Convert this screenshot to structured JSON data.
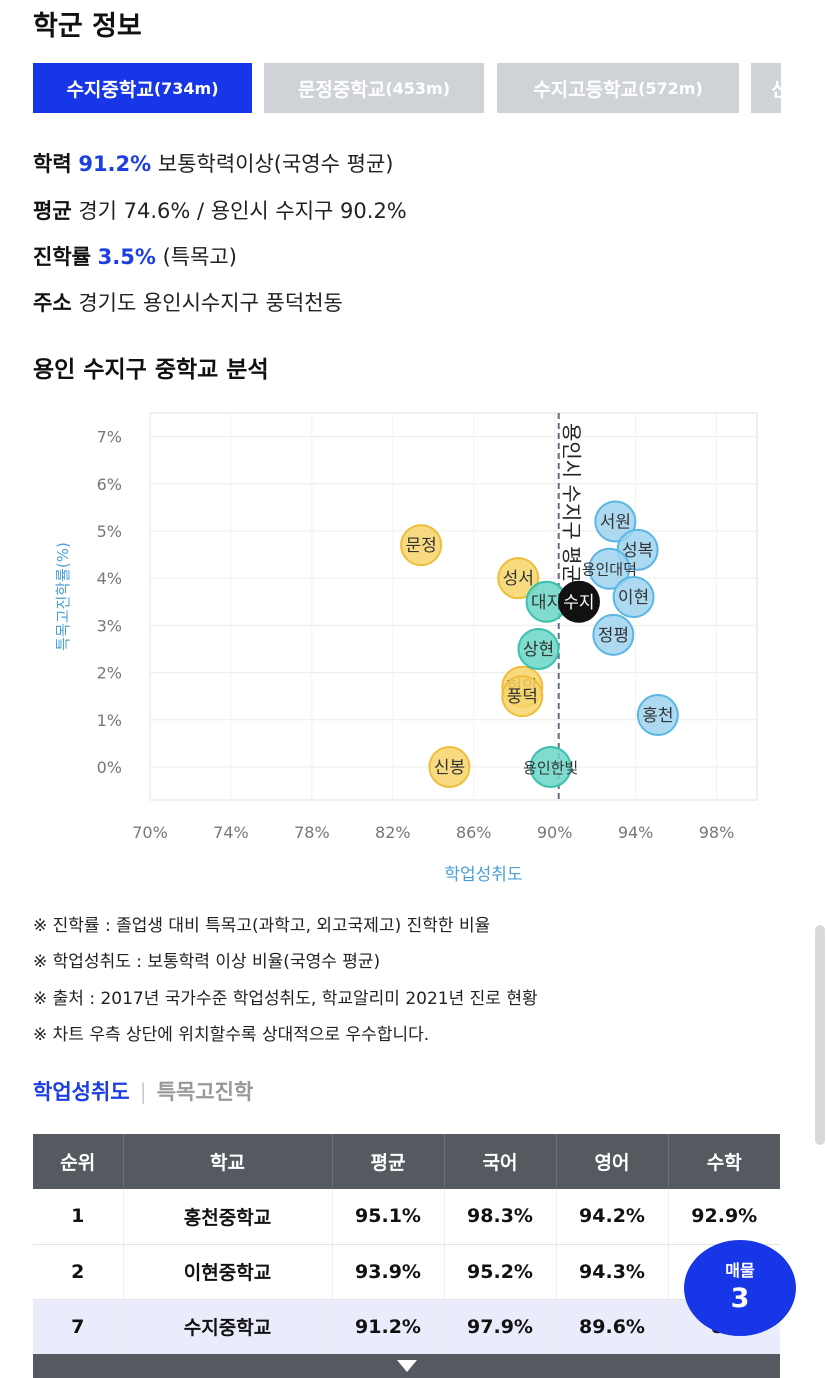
{
  "section_title": "학군 정보",
  "tabs": [
    {
      "name": "수지중학교",
      "dist": "(734m)",
      "active": true
    },
    {
      "name": "문정중학교",
      "dist": "(453m)",
      "active": false
    },
    {
      "name": "수지고등학교",
      "dist": "(572m)",
      "active": false
    },
    {
      "name": "신",
      "dist": "",
      "active": false
    }
  ],
  "info": {
    "academic_label": "학력",
    "academic_value": "91.2%",
    "academic_desc": "보통학력이상(국영수 평균)",
    "average_label": "평균",
    "average_desc": "경기 74.6% / 용인시 수지구 90.2%",
    "advance_label": "진학률",
    "advance_value": "3.5%",
    "advance_desc": "(특목고)",
    "address_label": "주소",
    "address_desc": "경기도 용인시수지구 풍덕천동"
  },
  "analysis_title": "용인 수지구 중학교 분석",
  "chart_data": {
    "type": "scatter",
    "xlabel": "학업성취도",
    "ylabel": "특목고진학률(%)",
    "xlim": [
      70,
      100
    ],
    "ylim": [
      -0.7,
      7.5
    ],
    "x_ticks": [
      "70%",
      "74%",
      "78%",
      "82%",
      "86%",
      "90%",
      "94%",
      "98%"
    ],
    "x_tick_values": [
      70,
      74,
      78,
      82,
      86,
      90,
      94,
      98
    ],
    "y_ticks": [
      "0%",
      "1%",
      "2%",
      "3%",
      "4%",
      "5%",
      "6%",
      "7%"
    ],
    "y_tick_values": [
      0,
      1,
      2,
      3,
      4,
      5,
      6,
      7
    ],
    "reference_line": {
      "x": 90.2,
      "label": "용인시 수지구 평균"
    },
    "colors": {
      "yellow": "#f7d56a",
      "yellow_stroke": "#f0bd3a",
      "teal": "#6ad6c6",
      "teal_stroke": "#3cc0ae",
      "blue": "#9fd4ef",
      "blue_stroke": "#5bb6e4",
      "current": "#111111",
      "axis_text": "#777777",
      "ylabel_color": "#4aa0d8"
    },
    "points": [
      {
        "label": "문정",
        "x": 83.4,
        "y": 4.7,
        "color": "yellow"
      },
      {
        "label": "성서",
        "x": 88.2,
        "y": 4.0,
        "color": "yellow"
      },
      {
        "label": "현암",
        "x": 88.4,
        "y": 1.7,
        "color": "yellow"
      },
      {
        "label": "풍덕",
        "x": 88.4,
        "y": 1.5,
        "color": "yellow"
      },
      {
        "label": "신봉",
        "x": 84.8,
        "y": 0.0,
        "color": "yellow"
      },
      {
        "label": "대지",
        "x": 89.6,
        "y": 3.5,
        "color": "teal"
      },
      {
        "label": "상현",
        "x": 89.2,
        "y": 2.5,
        "color": "teal"
      },
      {
        "label": "용인한빛",
        "x": 89.8,
        "y": 0.0,
        "color": "teal"
      },
      {
        "label": "서원",
        "x": 93.0,
        "y": 5.2,
        "color": "blue"
      },
      {
        "label": "성복",
        "x": 94.1,
        "y": 4.6,
        "color": "blue"
      },
      {
        "label": "용인대덕",
        "x": 92.7,
        "y": 4.2,
        "color": "blue"
      },
      {
        "label": "이현",
        "x": 93.9,
        "y": 3.6,
        "color": "blue"
      },
      {
        "label": "정평",
        "x": 92.9,
        "y": 2.8,
        "color": "blue"
      },
      {
        "label": "홍천",
        "x": 95.1,
        "y": 1.1,
        "color": "blue"
      },
      {
        "label": "수지",
        "x": 91.2,
        "y": 3.5,
        "color": "current"
      }
    ]
  },
  "notes": [
    "※ 진학률 : 졸업생 대비 특목고(과학고, 외고국제고) 진학한 비율",
    "※ 학업성취도 : 보통학력 이상 비율(국영수 평균)",
    "※ 출처 : 2017년 국가수준 학업성취도, 학교알리미 2021년 진로 현황",
    "※ 차트 우측 상단에 위치할수록 상대적으로 우수합니다."
  ],
  "subtabs": {
    "active": "학업성취도",
    "inactive": "특목고진학"
  },
  "table": {
    "headers": [
      "순위",
      "학교",
      "평균",
      "국어",
      "영어",
      "수학"
    ],
    "rows": [
      [
        "1",
        "홍천중학교",
        "95.1%",
        "98.3%",
        "94.2%",
        "92.9%"
      ],
      [
        "2",
        "이현중학교",
        "93.9%",
        "95.2%",
        "94.3%",
        ""
      ],
      [
        "7",
        "수지중학교",
        "91.2%",
        "97.9%",
        "89.6%",
        "86"
      ]
    ]
  },
  "fab": {
    "label": "매물",
    "count": "3"
  }
}
